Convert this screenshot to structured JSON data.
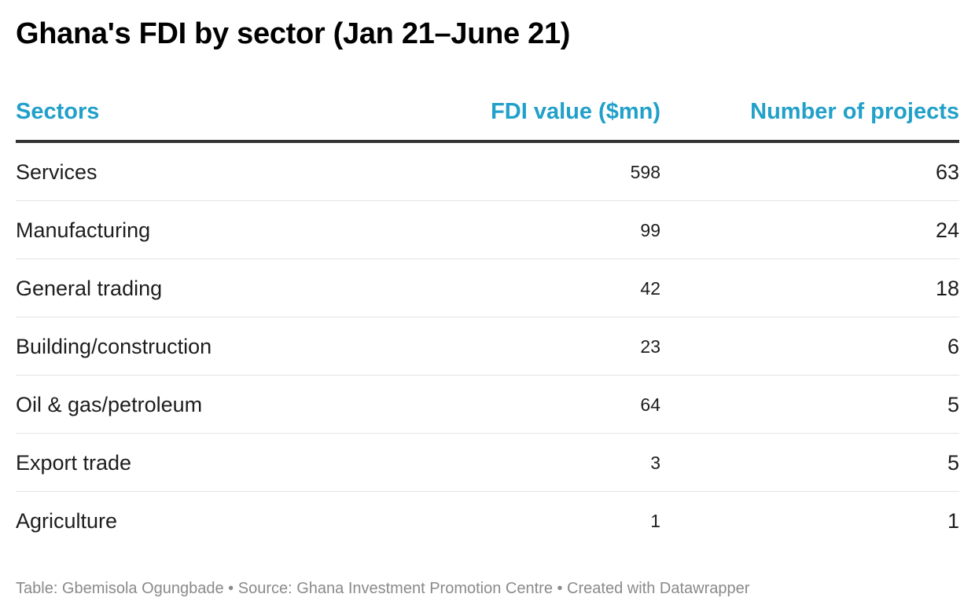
{
  "chart_data": {
    "type": "table",
    "title": "Ghana's FDI by sector (Jan 21–June 21)",
    "columns": [
      "Sectors",
      "FDI value ($mn)",
      "Number of projects"
    ],
    "rows": [
      {
        "sector": "Services",
        "fdi": "598",
        "projects": "63"
      },
      {
        "sector": "Manufacturing",
        "fdi": "99",
        "projects": "24"
      },
      {
        "sector": "General trading",
        "fdi": "42",
        "projects": "18"
      },
      {
        "sector": "Building/construction",
        "fdi": "23",
        "projects": "6"
      },
      {
        "sector": "Oil & gas/petroleum",
        "fdi": "64",
        "projects": "5"
      },
      {
        "sector": "Export trade",
        "fdi": "3",
        "projects": "5"
      },
      {
        "sector": "Agriculture",
        "fdi": "1",
        "projects": "1"
      }
    ],
    "footer": "Table: Gbemisola Ogungbade • Source: Ghana Investment Promotion Centre • Created with Datawrapper",
    "colors": {
      "header_text": "#21a0c9",
      "header_rule": "#333333",
      "row_divider": "#e3e3e3",
      "footer_text": "#8a8a8a"
    }
  }
}
